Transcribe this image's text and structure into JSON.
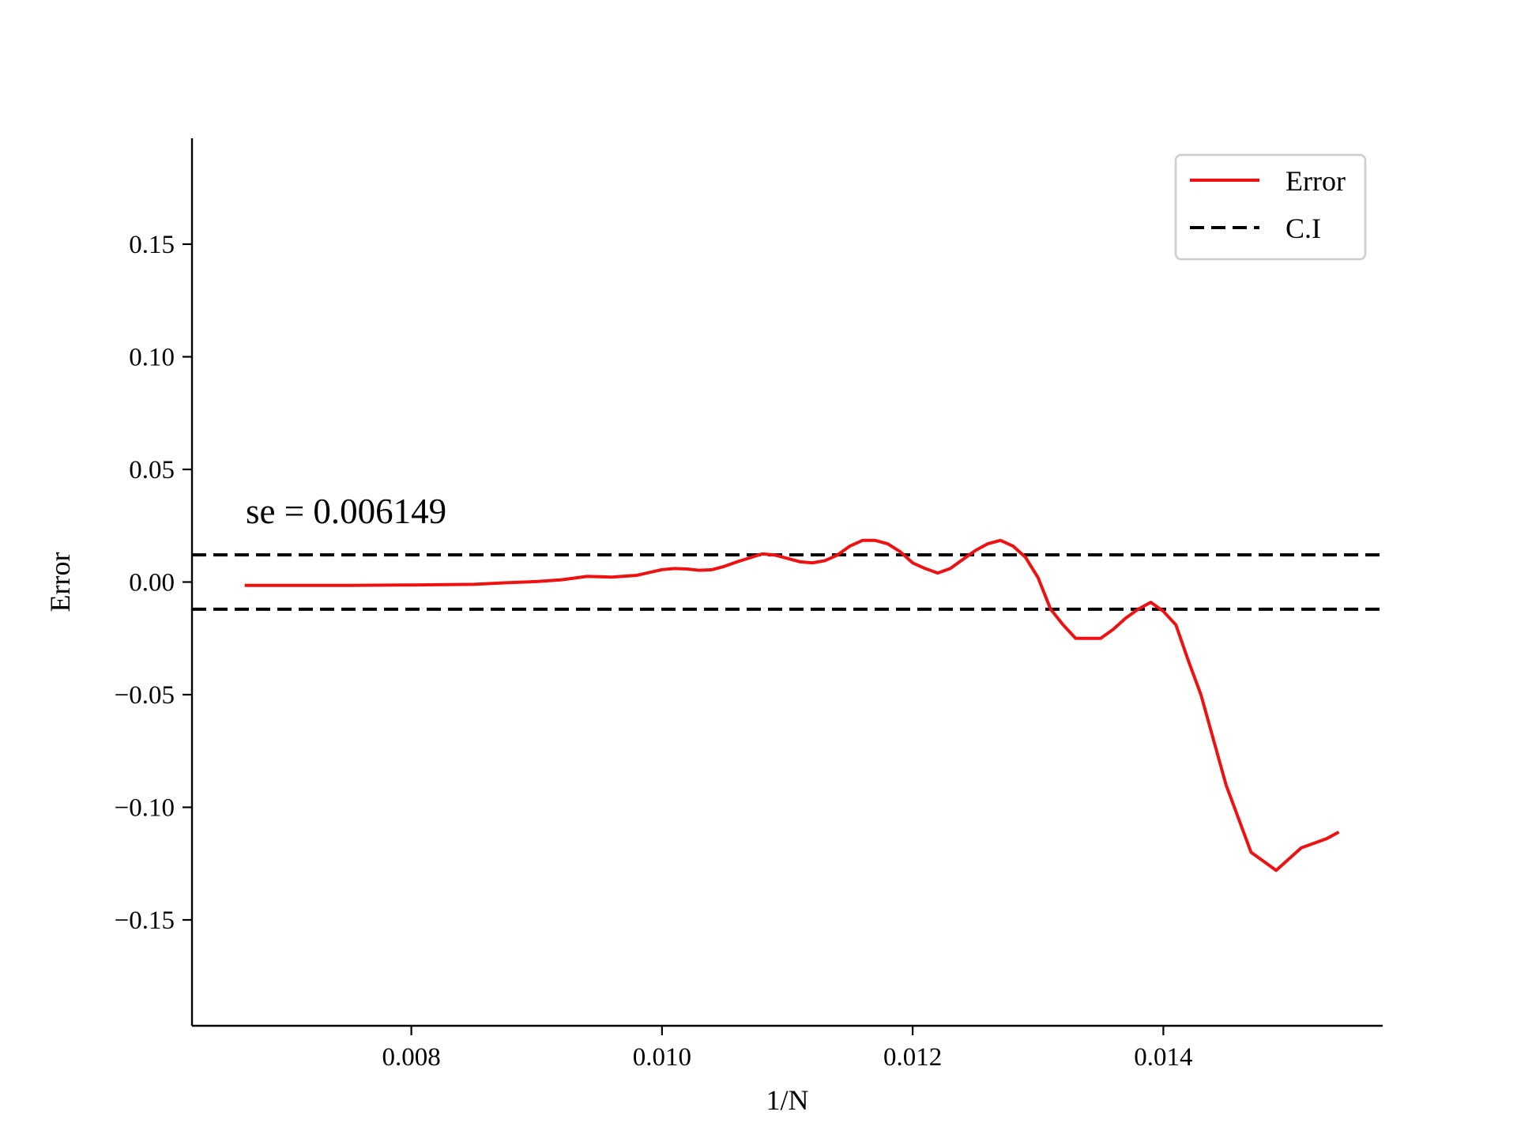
{
  "chart_data": {
    "type": "line",
    "xlabel": "1/N",
    "ylabel": "Error",
    "xlim": [
      0.00625,
      0.01575
    ],
    "ylim": [
      -0.197,
      0.197
    ],
    "x_ticks": [
      0.008,
      0.01,
      0.012,
      0.014
    ],
    "x_tick_labels": [
      "0.008",
      "0.010",
      "0.012",
      "0.014"
    ],
    "y_ticks": [
      0.15,
      0.1,
      0.05,
      0.0,
      -0.05,
      -0.1,
      -0.15
    ],
    "y_tick_labels": [
      "0.15",
      "0.10",
      "0.05",
      "0.00",
      "−0.05",
      "−0.10",
      "−0.15"
    ],
    "grid": false,
    "legend_position": "top-right",
    "annotation": "se = 0.006149",
    "series": [
      {
        "name": "Error",
        "style": "solid",
        "color": "#ee1111",
        "x": [
          0.00667,
          0.007,
          0.0075,
          0.008,
          0.0085,
          0.0088,
          0.009,
          0.0092,
          0.0094,
          0.0096,
          0.0098,
          0.01,
          0.0101,
          0.0102,
          0.0103,
          0.0104,
          0.0105,
          0.0106,
          0.0108,
          0.0109,
          0.011,
          0.0111,
          0.0112,
          0.0113,
          0.0114,
          0.0115,
          0.0116,
          0.0117,
          0.0118,
          0.0119,
          0.012,
          0.0121,
          0.0122,
          0.0123,
          0.0124,
          0.0125,
          0.0126,
          0.0127,
          0.0128,
          0.0129,
          0.013,
          0.0131,
          0.0132,
          0.0133,
          0.0134,
          0.0135,
          0.0136,
          0.0137,
          0.0138,
          0.0139,
          0.014,
          0.0141,
          0.0142,
          0.0143,
          0.0144,
          0.0145,
          0.0146,
          0.0147,
          0.0148,
          0.0149,
          0.015,
          0.0151,
          0.0152,
          0.0153,
          0.0154
        ],
        "y": [
          -0.0015,
          -0.0015,
          -0.0015,
          -0.0013,
          -0.001,
          -0.0002,
          0.0002,
          0.001,
          0.0025,
          0.0022,
          0.003,
          0.0055,
          0.006,
          0.0058,
          0.0052,
          0.0055,
          0.007,
          0.009,
          0.0125,
          0.012,
          0.0105,
          0.009,
          0.0085,
          0.0095,
          0.012,
          0.016,
          0.0185,
          0.0185,
          0.017,
          0.0135,
          0.0085,
          0.006,
          0.004,
          0.006,
          0.01,
          0.014,
          0.017,
          0.0185,
          0.016,
          0.011,
          0.002,
          -0.012,
          -0.019,
          -0.025,
          -0.025,
          -0.025,
          -0.021,
          -0.016,
          -0.012,
          -0.009,
          -0.013,
          -0.019,
          -0.035,
          -0.05,
          -0.07,
          -0.09,
          -0.105,
          -0.12,
          -0.124,
          -0.128,
          -0.123,
          -0.118,
          -0.116,
          -0.114,
          -0.111
        ]
      },
      {
        "name": "C.I",
        "style": "dashed",
        "color": "#000000",
        "hlines": [
          0.01205,
          -0.01205
        ]
      }
    ]
  }
}
